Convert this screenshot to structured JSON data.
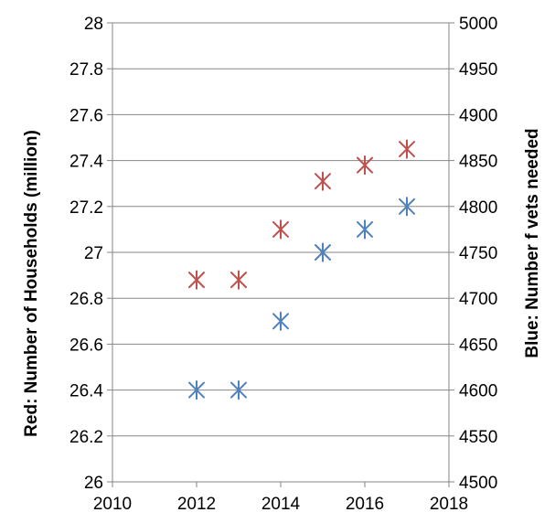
{
  "chart_data": {
    "type": "scatter",
    "title": "",
    "xlabel": "",
    "ylabel": "Red: Number of Households (million)",
    "y2label": "Blue: Number f vets needed",
    "xlim": [
      2010,
      2018
    ],
    "ylim": [
      26,
      28
    ],
    "y2lim": [
      4500,
      5000
    ],
    "x_ticks": [
      "2010",
      "2012",
      "2014",
      "2016",
      "2018"
    ],
    "y_ticks": [
      "26",
      "26.2",
      "26.4",
      "26.6",
      "26.8",
      "27",
      "27.2",
      "27.4",
      "27.6",
      "27.8",
      "28"
    ],
    "y2_ticks": [
      "4500",
      "4550",
      "4600",
      "4650",
      "4700",
      "4750",
      "4800",
      "4850",
      "4900",
      "4950",
      "5000"
    ],
    "grid": true,
    "legend": "none",
    "series": [
      {
        "axis": "left",
        "color": "#c0504d",
        "marker": "asterisk",
        "x": [
          2012,
          2013,
          2014,
          2015,
          2016,
          2017
        ],
        "y": [
          26.88,
          26.88,
          27.1,
          27.31,
          27.38,
          27.45
        ]
      },
      {
        "axis": "right",
        "color": "#4f81bd",
        "marker": "asterisk",
        "x": [
          2012,
          2013,
          2014,
          2015,
          2016,
          2017
        ],
        "y": [
          4600,
          4600,
          4675,
          4750,
          4775,
          4800
        ]
      }
    ]
  }
}
